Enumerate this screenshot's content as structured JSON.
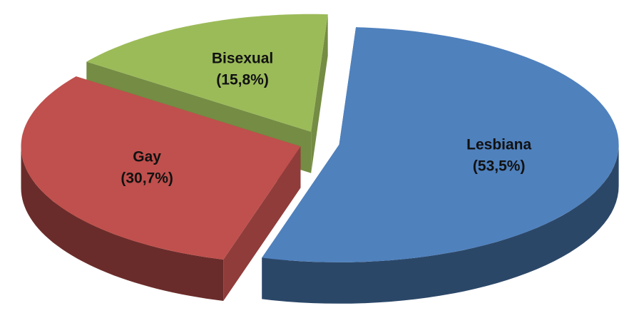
{
  "chart_data": {
    "type": "pie",
    "categories": [
      "Lesbiana",
      "Gay",
      "Bisexual"
    ],
    "values": [
      53.5,
      30.7,
      15.8
    ],
    "value_labels": [
      "(53,5%)",
      "(30,7%)",
      "(15,8%)"
    ],
    "colors": [
      "#4f81bd",
      "#c0504d",
      "#9bbb59"
    ]
  }
}
